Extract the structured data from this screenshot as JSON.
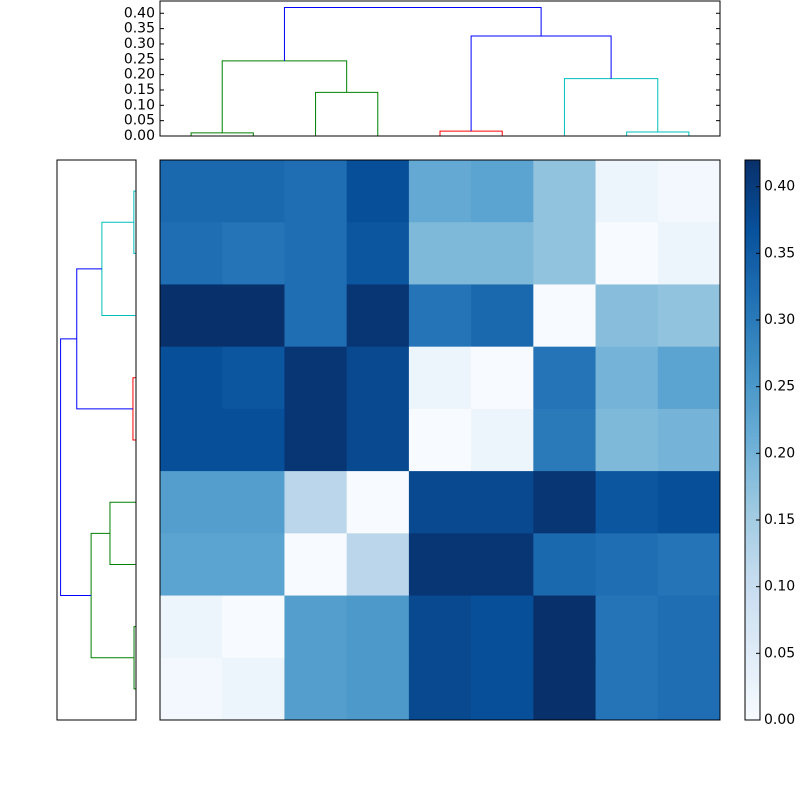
{
  "chart_data": [
    {
      "type": "dendrogram",
      "orientation": "top",
      "ilim": [
        0,
        90
      ],
      "dlim": [
        0,
        0.44
      ],
      "dticks": [
        {
          "value": 0,
          "label": "0.00"
        },
        {
          "value": 0.05,
          "label": "0.05"
        },
        {
          "value": 0.1,
          "label": "0.10"
        },
        {
          "value": 0.15,
          "label": "0.15"
        },
        {
          "value": 0.2,
          "label": "0.20"
        },
        {
          "value": 0.25,
          "label": "0.25"
        },
        {
          "value": 0.3,
          "label": "0.30"
        },
        {
          "value": 0.35,
          "label": "0.35"
        },
        {
          "value": 0.4,
          "label": "0.40"
        }
      ],
      "icoord": [
        [
          5,
          5,
          15,
          15
        ],
        [
          25,
          25,
          35,
          35
        ],
        [
          10,
          10,
          30,
          30
        ],
        [
          45,
          45,
          55,
          55
        ],
        [
          75,
          75,
          85,
          85
        ],
        [
          65,
          65,
          80,
          80
        ],
        [
          50,
          50,
          72.5,
          72.5
        ],
        [
          20,
          20,
          61.25,
          61.25
        ]
      ],
      "dcoord": [
        [
          0,
          0.01,
          0.01,
          0
        ],
        [
          0,
          0.142,
          0.142,
          0
        ],
        [
          0.01,
          0.245,
          0.245,
          0.142
        ],
        [
          0,
          0.016,
          0.016,
          0
        ],
        [
          0,
          0.013,
          0.013,
          0
        ],
        [
          0,
          0.187,
          0.187,
          0.013
        ],
        [
          0.016,
          0.326,
          0.326,
          0.187
        ],
        [
          0.245,
          0.419,
          0.419,
          0.326
        ]
      ],
      "colors": [
        "#008000",
        "#008000",
        "#008000",
        "#ff0000",
        "#00bfbf",
        "#00bfbf",
        "#0000ff",
        "#0000ff"
      ]
    },
    {
      "type": "dendrogram",
      "orientation": "left",
      "ilim": [
        0,
        90
      ],
      "dlim": [
        0,
        0.44
      ],
      "icoord": [
        [
          5,
          5,
          15,
          15
        ],
        [
          10,
          10,
          25,
          25
        ],
        [
          35,
          35,
          45,
          45
        ],
        [
          17.5,
          17.5,
          40,
          40
        ],
        [
          55,
          55,
          65,
          65
        ],
        [
          75,
          75,
          85,
          85
        ],
        [
          60,
          60,
          80,
          80
        ],
        [
          28.75,
          28.75,
          70,
          70
        ]
      ],
      "dcoord": [
        [
          0,
          0.012,
          0.012,
          0
        ],
        [
          0.012,
          0.19,
          0.19,
          0
        ],
        [
          0,
          0.017,
          0.017,
          0
        ],
        [
          0.19,
          0.33,
          0.33,
          0.017
        ],
        [
          0,
          0.145,
          0.145,
          0
        ],
        [
          0,
          0.011,
          0.011,
          0
        ],
        [
          0.145,
          0.25,
          0.25,
          0.011
        ],
        [
          0.33,
          0.42,
          0.42,
          0.25
        ]
      ],
      "colors": [
        "#00bfbf",
        "#00bfbf",
        "#ff0000",
        "#0000ff",
        "#008000",
        "#008000",
        "#008000",
        "#0000ff"
      ]
    },
    {
      "type": "heatmap",
      "colormap": "Blues",
      "vlim": [
        0,
        0.42
      ],
      "values": [
        [
          0.33,
          0.33,
          0.32,
          0.37,
          0.22,
          0.23,
          0.17,
          0.02,
          0.01
        ],
        [
          0.32,
          0.31,
          0.32,
          0.36,
          0.19,
          0.19,
          0.17,
          0.0,
          0.02
        ],
        [
          0.42,
          0.42,
          0.32,
          0.41,
          0.31,
          0.33,
          0.0,
          0.18,
          0.17
        ],
        [
          0.37,
          0.36,
          0.41,
          0.38,
          0.02,
          0.0,
          0.31,
          0.2,
          0.23
        ],
        [
          0.37,
          0.37,
          0.41,
          0.38,
          0.0,
          0.02,
          0.3,
          0.19,
          0.2
        ],
        [
          0.24,
          0.24,
          0.12,
          0.0,
          0.38,
          0.38,
          0.41,
          0.36,
          0.37
        ],
        [
          0.23,
          0.23,
          0.0,
          0.12,
          0.41,
          0.41,
          0.33,
          0.32,
          0.31
        ],
        [
          0.02,
          0.0,
          0.24,
          0.25,
          0.38,
          0.37,
          0.42,
          0.31,
          0.32
        ],
        [
          0.01,
          0.02,
          0.24,
          0.25,
          0.38,
          0.37,
          0.42,
          0.31,
          0.32
        ]
      ],
      "colorbar_ticks": [
        {
          "value": 0,
          "label": "0.00"
        },
        {
          "value": 0.05,
          "label": "0.05"
        },
        {
          "value": 0.1,
          "label": "0.10"
        },
        {
          "value": 0.15,
          "label": "0.15"
        },
        {
          "value": 0.2,
          "label": "0.20"
        },
        {
          "value": 0.25,
          "label": "0.25"
        },
        {
          "value": 0.3,
          "label": "0.30"
        },
        {
          "value": 0.35,
          "label": "0.35"
        },
        {
          "value": 0.4,
          "label": "0.40"
        }
      ]
    }
  ]
}
